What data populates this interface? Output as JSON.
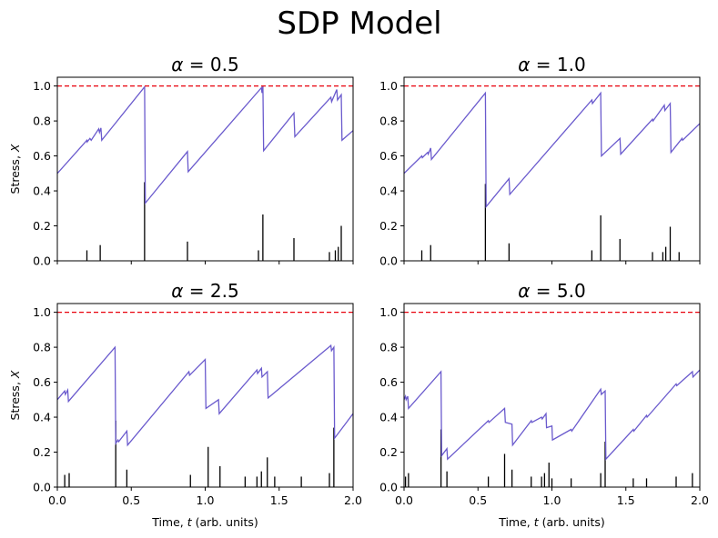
{
  "figure_title": "SDP Model",
  "chart_data": [
    {
      "type": "line",
      "title": "α = 0.5",
      "ylabel": "Stress, X",
      "xlabel": "",
      "xlim": [
        0,
        2.0
      ],
      "ylim": [
        0,
        1.05
      ],
      "xticks": [
        0.0,
        0.5,
        1.0,
        1.5,
        2.0
      ],
      "yticks": [
        0.0,
        0.2,
        0.4,
        0.6,
        0.8,
        1.0
      ],
      "xtick_labels_visible": false,
      "threshold": 1.0,
      "stress_series": [
        [
          0,
          0.5
        ],
        [
          0.2,
          0.69
        ],
        [
          0.202,
          0.68
        ],
        [
          0.22,
          0.7
        ],
        [
          0.229,
          0.69
        ],
        [
          0.28,
          0.755
        ],
        [
          0.285,
          0.735
        ],
        [
          0.295,
          0.76
        ],
        [
          0.3,
          0.69
        ],
        [
          0.59,
          0.995
        ],
        [
          0.595,
          0.33
        ],
        [
          0.88,
          0.625
        ],
        [
          0.885,
          0.51
        ],
        [
          1.38,
          0.99
        ],
        [
          1.384,
          0.96
        ],
        [
          1.39,
          1.0
        ],
        [
          1.395,
          0.63
        ],
        [
          1.6,
          0.845
        ],
        [
          1.606,
          0.71
        ],
        [
          1.85,
          0.935
        ],
        [
          1.855,
          0.91
        ],
        [
          1.89,
          0.98
        ],
        [
          1.895,
          0.92
        ],
        [
          1.92,
          0.95
        ],
        [
          1.925,
          0.69
        ],
        [
          2.0,
          0.745
        ]
      ],
      "events": [
        [
          0.2,
          0.06
        ],
        [
          0.29,
          0.09
        ],
        [
          0.59,
          0.45
        ],
        [
          0.88,
          0.11
        ],
        [
          1.36,
          0.06
        ],
        [
          1.39,
          0.265
        ],
        [
          1.6,
          0.13
        ],
        [
          1.84,
          0.05
        ],
        [
          1.88,
          0.06
        ],
        [
          1.9,
          0.08
        ],
        [
          1.92,
          0.2
        ]
      ]
    },
    {
      "type": "line",
      "title": "α = 1.0",
      "ylabel": "",
      "xlabel": "",
      "xlim": [
        0,
        2.0
      ],
      "ylim": [
        0,
        1.05
      ],
      "xticks": [
        0.0,
        0.5,
        1.0,
        1.5,
        2.0
      ],
      "yticks": [
        0.0,
        0.2,
        0.4,
        0.6,
        0.8,
        1.0
      ],
      "xtick_labels_visible": false,
      "threshold": 1.0,
      "stress_series": [
        [
          0,
          0.5
        ],
        [
          0.12,
          0.6
        ],
        [
          0.124,
          0.59
        ],
        [
          0.16,
          0.62
        ],
        [
          0.164,
          0.61
        ],
        [
          0.18,
          0.645
        ],
        [
          0.185,
          0.58
        ],
        [
          0.55,
          0.96
        ],
        [
          0.555,
          0.31
        ],
        [
          0.71,
          0.47
        ],
        [
          0.715,
          0.38
        ],
        [
          1.27,
          0.92
        ],
        [
          1.274,
          0.9
        ],
        [
          1.33,
          0.96
        ],
        [
          1.335,
          0.6
        ],
        [
          1.46,
          0.7
        ],
        [
          1.465,
          0.61
        ],
        [
          1.68,
          0.81
        ],
        [
          1.684,
          0.8
        ],
        [
          1.76,
          0.89
        ],
        [
          1.764,
          0.86
        ],
        [
          1.8,
          0.9
        ],
        [
          1.805,
          0.62
        ],
        [
          1.88,
          0.7
        ],
        [
          1.884,
          0.69
        ],
        [
          2.0,
          0.785
        ]
      ],
      "events": [
        [
          0.12,
          0.06
        ],
        [
          0.18,
          0.09
        ],
        [
          0.55,
          0.44
        ],
        [
          0.71,
          0.1
        ],
        [
          1.27,
          0.06
        ],
        [
          1.33,
          0.26
        ],
        [
          1.46,
          0.125
        ],
        [
          1.68,
          0.05
        ],
        [
          1.75,
          0.05
        ],
        [
          1.77,
          0.08
        ],
        [
          1.8,
          0.195
        ],
        [
          1.86,
          0.05
        ]
      ]
    },
    {
      "type": "line",
      "title": "α = 2.5",
      "ylabel": "Stress, X",
      "xlabel": "Time, t (arb. units)",
      "xlim": [
        0,
        2.0
      ],
      "ylim": [
        0,
        1.05
      ],
      "xticks": [
        0.0,
        0.5,
        1.0,
        1.5,
        2.0
      ],
      "yticks": [
        0.0,
        0.2,
        0.4,
        0.6,
        0.8,
        1.0
      ],
      "xtick_labels_visible": true,
      "threshold": 1.0,
      "stress_series": [
        [
          0,
          0.5
        ],
        [
          0.05,
          0.55
        ],
        [
          0.054,
          0.53
        ],
        [
          0.07,
          0.555
        ],
        [
          0.075,
          0.49
        ],
        [
          0.39,
          0.8
        ],
        [
          0.395,
          0.25
        ],
        [
          0.41,
          0.27
        ],
        [
          0.415,
          0.26
        ],
        [
          0.47,
          0.32
        ],
        [
          0.475,
          0.24
        ],
        [
          0.89,
          0.66
        ],
        [
          0.894,
          0.64
        ],
        [
          1.0,
          0.73
        ],
        [
          1.005,
          0.45
        ],
        [
          1.09,
          0.5
        ],
        [
          1.095,
          0.42
        ],
        [
          1.35,
          0.67
        ],
        [
          1.354,
          0.65
        ],
        [
          1.38,
          0.68
        ],
        [
          1.384,
          0.63
        ],
        [
          1.42,
          0.66
        ],
        [
          1.425,
          0.51
        ],
        [
          1.85,
          0.81
        ],
        [
          1.854,
          0.78
        ],
        [
          1.87,
          0.8
        ],
        [
          1.875,
          0.28
        ],
        [
          2.0,
          0.42
        ]
      ],
      "events": [
        [
          0.05,
          0.07
        ],
        [
          0.08,
          0.08
        ],
        [
          0.395,
          0.38
        ],
        [
          0.47,
          0.1
        ],
        [
          0.9,
          0.07
        ],
        [
          1.02,
          0.23
        ],
        [
          1.1,
          0.12
        ],
        [
          1.27,
          0.06
        ],
        [
          1.35,
          0.06
        ],
        [
          1.38,
          0.09
        ],
        [
          1.42,
          0.17
        ],
        [
          1.47,
          0.06
        ],
        [
          1.65,
          0.06
        ],
        [
          1.84,
          0.08
        ],
        [
          1.87,
          0.34
        ]
      ]
    },
    {
      "type": "line",
      "title": "α = 5.0",
      "ylabel": "",
      "xlabel": "Time, t (arb. units)",
      "xlim": [
        0,
        2.0
      ],
      "ylim": [
        0,
        1.05
      ],
      "xticks": [
        0.0,
        0.5,
        1.0,
        1.5,
        2.0
      ],
      "yticks": [
        0.0,
        0.2,
        0.4,
        0.6,
        0.8,
        1.0
      ],
      "xtick_labels_visible": true,
      "threshold": 1.0,
      "stress_series": [
        [
          0,
          0.5
        ],
        [
          0.01,
          0.52
        ],
        [
          0.014,
          0.5
        ],
        [
          0.025,
          0.52
        ],
        [
          0.03,
          0.45
        ],
        [
          0.25,
          0.66
        ],
        [
          0.254,
          0.18
        ],
        [
          0.29,
          0.22
        ],
        [
          0.294,
          0.16
        ],
        [
          0.57,
          0.38
        ],
        [
          0.574,
          0.37
        ],
        [
          0.68,
          0.45
        ],
        [
          0.685,
          0.37
        ],
        [
          0.73,
          0.36
        ],
        [
          0.734,
          0.24
        ],
        [
          0.86,
          0.38
        ],
        [
          0.864,
          0.37
        ],
        [
          0.93,
          0.4
        ],
        [
          0.934,
          0.39
        ],
        [
          0.96,
          0.42
        ],
        [
          0.964,
          0.34
        ],
        [
          1.0,
          0.35
        ],
        [
          1.004,
          0.27
        ],
        [
          1.13,
          0.33
        ],
        [
          1.134,
          0.32
        ],
        [
          1.33,
          0.56
        ],
        [
          1.334,
          0.53
        ],
        [
          1.36,
          0.55
        ],
        [
          1.365,
          0.16
        ],
        [
          1.55,
          0.33
        ],
        [
          1.554,
          0.32
        ],
        [
          1.64,
          0.41
        ],
        [
          1.644,
          0.4
        ],
        [
          1.84,
          0.59
        ],
        [
          1.844,
          0.58
        ],
        [
          1.95,
          0.66
        ],
        [
          1.954,
          0.63
        ],
        [
          2.0,
          0.67
        ]
      ],
      "events": [
        [
          0.01,
          0.06
        ],
        [
          0.03,
          0.08
        ],
        [
          0.25,
          0.33
        ],
        [
          0.29,
          0.09
        ],
        [
          0.57,
          0.06
        ],
        [
          0.68,
          0.19
        ],
        [
          0.73,
          0.1
        ],
        [
          0.86,
          0.06
        ],
        [
          0.93,
          0.06
        ],
        [
          0.95,
          0.08
        ],
        [
          0.98,
          0.14
        ],
        [
          1.0,
          0.05
        ],
        [
          1.13,
          0.05
        ],
        [
          1.33,
          0.08
        ],
        [
          1.36,
          0.26
        ],
        [
          1.55,
          0.05
        ],
        [
          1.64,
          0.05
        ],
        [
          1.84,
          0.06
        ],
        [
          1.95,
          0.08
        ]
      ]
    }
  ]
}
